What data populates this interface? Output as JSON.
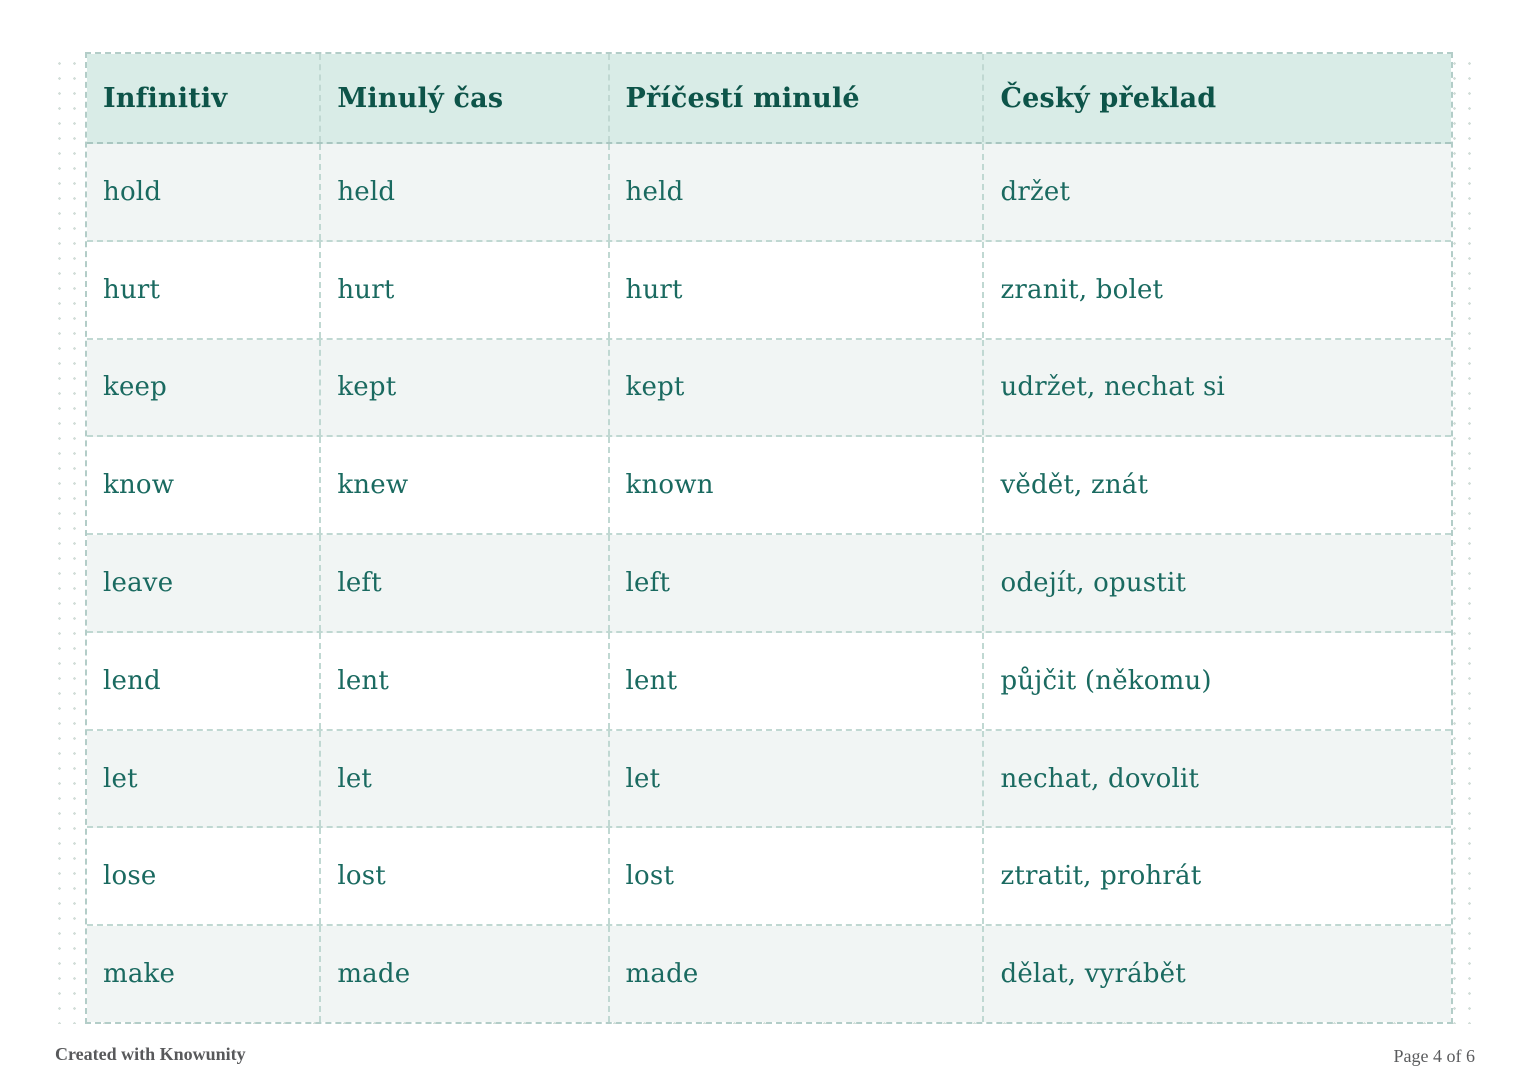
{
  "table": {
    "headers": [
      "Infinitiv",
      "Minulý čas",
      "Příčestí minulé",
      "Český překlad"
    ],
    "rows": [
      [
        "hold",
        "held",
        "held",
        "držet"
      ],
      [
        "hurt",
        "hurt",
        "hurt",
        "zranit, bolet"
      ],
      [
        "keep",
        "kept",
        "kept",
        "udržet, nechat si"
      ],
      [
        "know",
        "knew",
        "known",
        "vědět, znát"
      ],
      [
        "leave",
        "left",
        "left",
        "odejít, opustit"
      ],
      [
        "lend",
        "lent",
        "lent",
        "půjčit (někomu)"
      ],
      [
        "let",
        "let",
        "let",
        "nechat, dovolit"
      ],
      [
        "lose",
        "lost",
        "lost",
        "ztratit, prohrát"
      ],
      [
        "make",
        "made",
        "made",
        "dělat, vyrábět"
      ]
    ],
    "colors": {
      "header_bg": "#d9ece7",
      "header_text": "#0d5449",
      "cell_text": "#1a6a60",
      "alt_row_bg": "#f1f5f4",
      "dashed_border": "#c0d8d2",
      "margin_dots": "#d3ded9"
    }
  },
  "footer": {
    "left_text": "Created with Knowunity",
    "right_text": "Page 4 of 6"
  }
}
